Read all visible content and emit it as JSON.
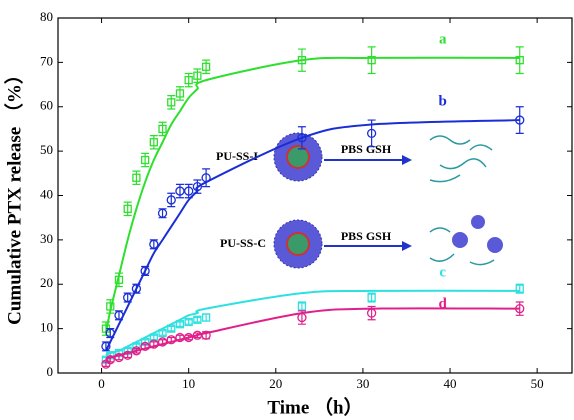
{
  "chart_data": {
    "type": "scatter",
    "x_label": "Time （h）",
    "y_label": "Cumulative PTX release （%）",
    "xlim": [
      -5,
      54
    ],
    "ylim": [
      0,
      80
    ],
    "xticks": [
      0,
      10,
      20,
      30,
      40,
      50
    ],
    "yticks": [
      0,
      10,
      20,
      30,
      40,
      50,
      60,
      70,
      80
    ],
    "x": [
      0.5,
      1,
      2,
      3,
      4,
      5,
      6,
      7,
      8,
      9,
      10,
      11,
      12,
      23,
      31,
      48
    ],
    "series": [
      {
        "name": "a",
        "color": "#2ee02e",
        "marker": "square",
        "values": [
          10,
          15,
          21,
          37,
          44,
          48,
          52,
          55,
          61,
          63,
          66,
          67,
          69,
          70.5,
          70.5,
          70.5
        ],
        "errors": [
          1.5,
          1.5,
          1.5,
          1.5,
          1.5,
          1.5,
          1.5,
          1.5,
          1.5,
          1.5,
          1.5,
          1.5,
          1.5,
          2.5,
          3,
          3
        ],
        "fit": [
          9,
          14,
          22,
          30,
          37,
          43,
          48,
          52,
          56,
          59,
          62,
          64,
          66,
          70.5,
          71,
          71
        ]
      },
      {
        "name": "b",
        "color": "#1a2ed6",
        "marker": "circle",
        "values": [
          6,
          9,
          13,
          17,
          19,
          23,
          29,
          36,
          39,
          41,
          41,
          42,
          44,
          53,
          54,
          57
        ],
        "errors": [
          1,
          1,
          1,
          1,
          1,
          1,
          1,
          1,
          1.5,
          1.5,
          1.5,
          1.5,
          2,
          2.5,
          3,
          3
        ],
        "fit": [
          5,
          7,
          11,
          15,
          19,
          23,
          27,
          30,
          33,
          36,
          39,
          41,
          43,
          53,
          56,
          57
        ]
      },
      {
        "name": "c",
        "color": "#2ee0e0",
        "marker": "square",
        "values": [
          3,
          4,
          4.5,
          5,
          6,
          7,
          8,
          9,
          10,
          11,
          11.5,
          12,
          12.5,
          15,
          17,
          19
        ],
        "errors": [
          0.5,
          0.5,
          0.5,
          0.5,
          0.5,
          0.5,
          0.5,
          0.5,
          0.5,
          0.5,
          0.5,
          0.5,
          0.8,
          1,
          1,
          1
        ],
        "fit": [
          4,
          4.5,
          5,
          6,
          7,
          8,
          9,
          10,
          11,
          12,
          13,
          13.5,
          14.5,
          18,
          18.5,
          18.5
        ]
      },
      {
        "name": "d",
        "color": "#e0208a",
        "marker": "circle",
        "values": [
          2,
          3,
          3.5,
          4,
          5,
          6,
          6.5,
          7,
          7.5,
          8,
          8,
          8.5,
          8.5,
          12.5,
          13.5,
          14.5
        ],
        "errors": [
          0.5,
          0.5,
          0.5,
          0.5,
          0.5,
          0.5,
          0.5,
          0.5,
          0.5,
          0.5,
          0.5,
          0.5,
          0.8,
          1.5,
          1.5,
          1.5
        ],
        "fit": [
          3,
          3.5,
          4,
          4.5,
          5,
          5.5,
          6,
          6.5,
          7,
          7.5,
          8,
          8.5,
          9,
          13.5,
          14.5,
          14.5
        ]
      }
    ],
    "annotations": [
      "PU-SS-I",
      "PBS GSH",
      "PU-SS-C",
      "PBS GSH"
    ]
  }
}
